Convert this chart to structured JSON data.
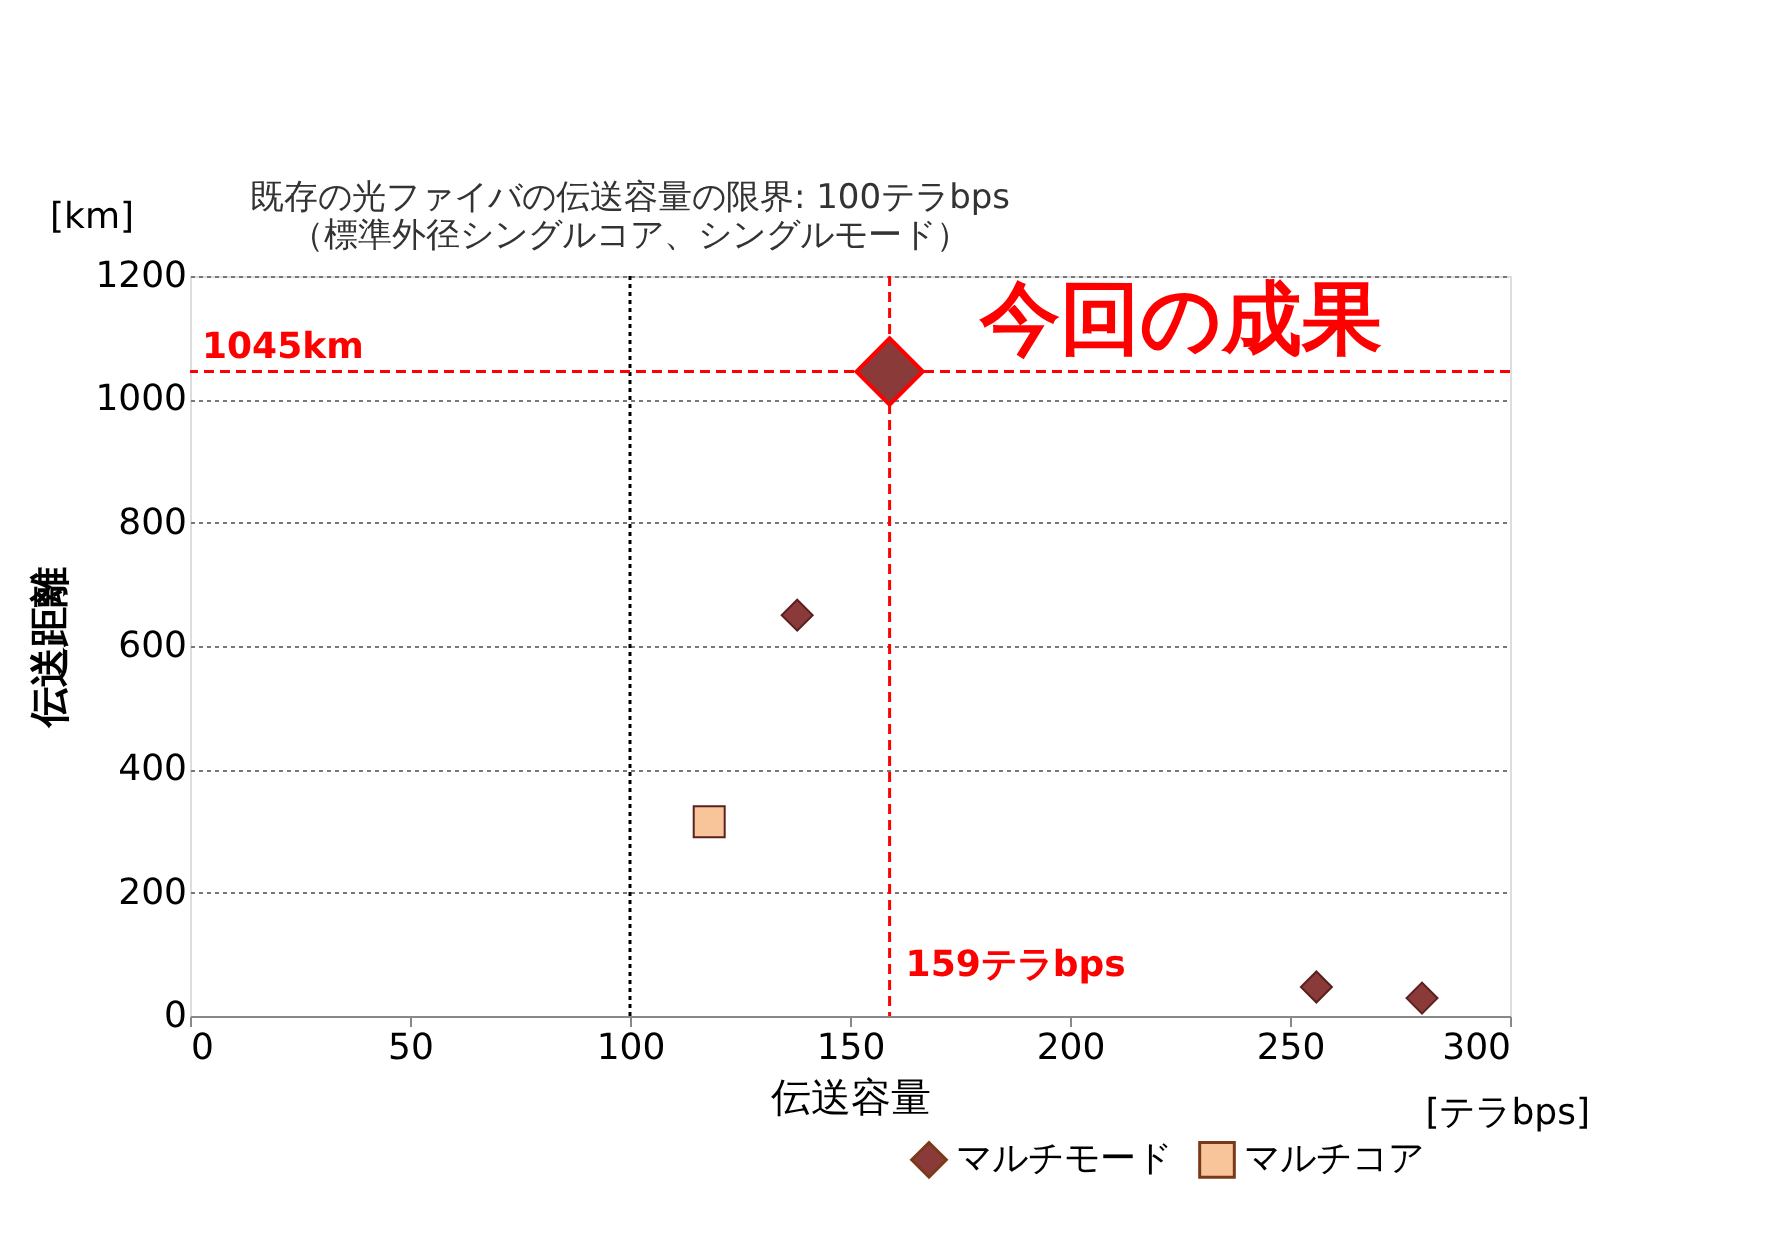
{
  "chart_data": {
    "type": "scatter",
    "xlabel": "伝送容量",
    "ylabel": "伝送距離",
    "xlim": [
      0,
      300
    ],
    "xticks": [
      0,
      50,
      100,
      150,
      200,
      250,
      300
    ],
    "ylim": [
      0,
      1200
    ],
    "yticks": [
      0,
      200,
      400,
      600,
      800,
      1000,
      1200
    ],
    "grid": "y",
    "legend": "bottom right",
    "series": [
      {
        "name": "マルチモード",
        "color": "#8b3a3a",
        "marker": "diamond",
        "x": [
          138,
          256,
          280
        ],
        "values": [
          650,
          47,
          29
        ]
      },
      {
        "name": "マルチコア",
        "color": "#f8c49a",
        "marker": "square",
        "x": [
          118
        ],
        "values": [
          315
        ]
      },
      {
        "color": "#8b3a3a",
        "marker": "diamond",
        "x": [
          159
        ],
        "values": [
          1045
        ]
      }
    ],
    "ref_lines": [
      {
        "axis": "x",
        "value": 100,
        "label": "既存の光ファイバの伝送容量の限界: 100テラbps\n（標準外径シングルコア、シングルモード）",
        "color": "#000000",
        "line_style": "dotted"
      },
      {
        "axis": "x",
        "value": 159,
        "label": "159テラbps",
        "color": "#ff0000",
        "line_style": "dashed"
      },
      {
        "axis": "y",
        "value": 1045,
        "label": "1045km",
        "color": "#ff0000",
        "line_style": "dashed"
      }
    ],
    "annotations": [
      "[km]",
      "[テラbps]",
      {
        "text": "今回の成果",
        "x": 159,
        "y": 1045
      }
    ]
  }
}
